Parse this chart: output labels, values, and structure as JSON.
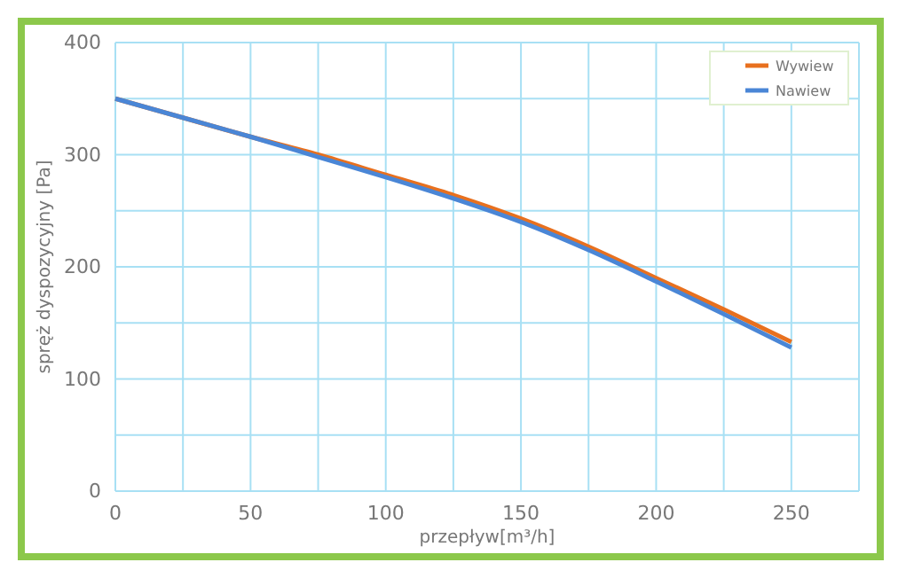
{
  "chart_data": {
    "type": "line",
    "xlabel": "przepływ[m³/h]",
    "ylabel": "spręż dyspozycyjny [Pa]",
    "x": [
      0,
      25,
      50,
      75,
      100,
      125,
      150,
      175,
      200,
      225,
      250
    ],
    "series": [
      {
        "name": "Wywiew",
        "color": "#e8701e",
        "values": [
          350,
          333,
          316,
          300,
          282,
          264,
          243,
          218,
          190,
          162,
          133
        ]
      },
      {
        "name": "Nawiew",
        "color": "#4a86d6",
        "values": [
          350,
          333,
          316,
          298,
          280,
          261,
          240,
          215,
          187,
          158,
          128
        ]
      }
    ],
    "xlim": [
      0,
      275
    ],
    "xticks": [
      0,
      {
        "value": 25,
        "label": null
      },
      50,
      {
        "value": 75,
        "label": null
      },
      100,
      {
        "value": 125,
        "label": null
      },
      150,
      {
        "value": 175,
        "label": null
      },
      200,
      {
        "value": 225,
        "label": null
      },
      250,
      {
        "value": 275,
        "label": null
      }
    ],
    "ylim": [
      0,
      400
    ],
    "yticks": [
      0,
      {
        "value": 50,
        "label": null
      },
      100,
      {
        "value": 150,
        "label": null
      },
      200,
      {
        "value": 250,
        "label": null
      },
      300,
      {
        "value": 350,
        "label": null
      },
      400
    ],
    "grid": true,
    "legend": "top right",
    "marker": "none",
    "line_style": "solid"
  }
}
